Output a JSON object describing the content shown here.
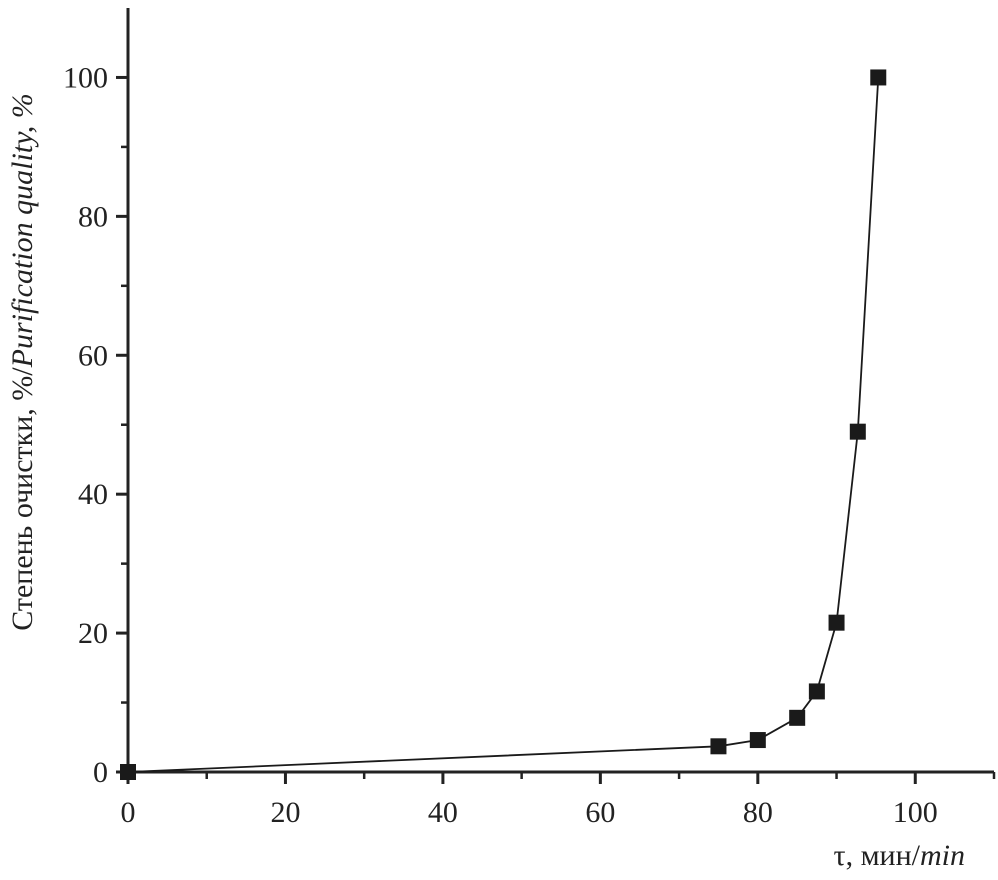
{
  "chart_data": {
    "type": "line",
    "xlabel": {
      "ru": "τ, мин/",
      "en": "min"
    },
    "ylabel": {
      "ru": "Степень очистки, %/",
      "en": "Purification quality, %"
    },
    "x": [
      0,
      75,
      80,
      85,
      87.5,
      90,
      92.7,
      95.3
    ],
    "series": [
      {
        "color": "#1a1a1a",
        "values": [
          0,
          3.7,
          4.6,
          7.8,
          11.6,
          21.5,
          49,
          100
        ]
      }
    ],
    "xlim": [
      0,
      110
    ],
    "ylim": [
      0,
      110
    ],
    "xticks": [
      0,
      20,
      40,
      60,
      80,
      100
    ],
    "yticks": [
      0,
      20,
      40,
      60,
      80,
      100
    ],
    "xminorticks": [
      10,
      30,
      50,
      70,
      90,
      110
    ],
    "yminorticks": [
      10,
      30,
      50,
      70,
      90
    ],
    "marker": "square",
    "grid": false
  }
}
